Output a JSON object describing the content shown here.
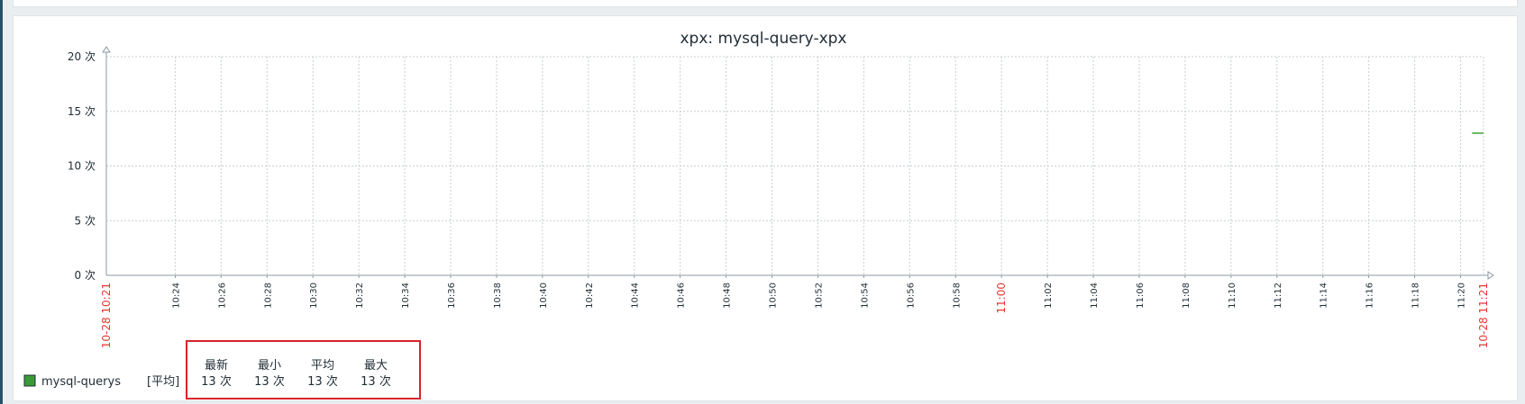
{
  "chart_data": {
    "type": "line",
    "title": "xpx: mysql-query-xpx",
    "y_ticks": [
      {
        "value": 0,
        "label": "0 次"
      },
      {
        "value": 5,
        "label": "5 次"
      },
      {
        "value": 10,
        "label": "10 次"
      },
      {
        "value": 15,
        "label": "15 次"
      },
      {
        "value": 20,
        "label": "20 次"
      }
    ],
    "ylim": [
      0,
      20
    ],
    "xlim": [
      "10:21",
      "11:21"
    ],
    "x_start_label": "10-28 10:21",
    "x_end_label": "10-28 11:21",
    "x_ticks": [
      "10:24",
      "10:26",
      "10:28",
      "10:30",
      "10:32",
      "10:34",
      "10:36",
      "10:38",
      "10:40",
      "10:42",
      "10:44",
      "10:46",
      "10:48",
      "10:50",
      "10:52",
      "10:54",
      "10:56",
      "10:58",
      "11:00",
      "11:02",
      "11:04",
      "11:06",
      "11:08",
      "11:10",
      "11:12",
      "11:14",
      "11:16",
      "11:18",
      "11:20"
    ],
    "highlight_tick": "11:00",
    "grid": true,
    "series": [
      {
        "name": "mysql-querys",
        "color": "#2e9e2e",
        "points": [
          {
            "x": "11:20.5",
            "y": 13
          },
          {
            "x": "11:21",
            "y": 13
          }
        ]
      }
    ],
    "legend": {
      "item": "mysql-querys",
      "func": "[平均]",
      "swatch_color": "#3a9a3a",
      "stats": [
        {
          "header": "最新",
          "value": "13 次"
        },
        {
          "header": "最小",
          "value": "13 次"
        },
        {
          "header": "平均",
          "value": "13 次"
        },
        {
          "header": "最大",
          "value": "13 次"
        }
      ],
      "highlight_color": "#d9232b"
    }
  }
}
